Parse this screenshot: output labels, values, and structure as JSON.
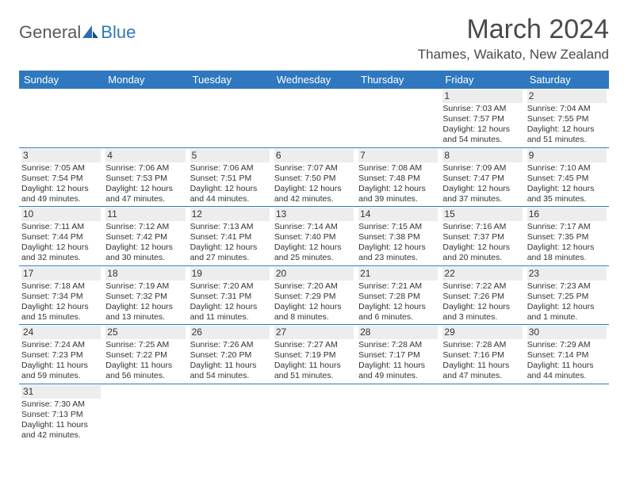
{
  "logo": {
    "word1": "General",
    "word2": "Blue"
  },
  "title": "March 2024",
  "location": "Thames, Waikato, New Zealand",
  "header_bg": "#2f78bf",
  "daynum_bg": "#ededed",
  "weekdays": [
    "Sunday",
    "Monday",
    "Tuesday",
    "Wednesday",
    "Thursday",
    "Friday",
    "Saturday"
  ],
  "weeks": [
    [
      null,
      null,
      null,
      null,
      null,
      {
        "n": "1",
        "sr": "Sunrise: 7:03 AM",
        "ss": "Sunset: 7:57 PM",
        "d1": "Daylight: 12 hours",
        "d2": "and 54 minutes."
      },
      {
        "n": "2",
        "sr": "Sunrise: 7:04 AM",
        "ss": "Sunset: 7:55 PM",
        "d1": "Daylight: 12 hours",
        "d2": "and 51 minutes."
      }
    ],
    [
      {
        "n": "3",
        "sr": "Sunrise: 7:05 AM",
        "ss": "Sunset: 7:54 PM",
        "d1": "Daylight: 12 hours",
        "d2": "and 49 minutes."
      },
      {
        "n": "4",
        "sr": "Sunrise: 7:06 AM",
        "ss": "Sunset: 7:53 PM",
        "d1": "Daylight: 12 hours",
        "d2": "and 47 minutes."
      },
      {
        "n": "5",
        "sr": "Sunrise: 7:06 AM",
        "ss": "Sunset: 7:51 PM",
        "d1": "Daylight: 12 hours",
        "d2": "and 44 minutes."
      },
      {
        "n": "6",
        "sr": "Sunrise: 7:07 AM",
        "ss": "Sunset: 7:50 PM",
        "d1": "Daylight: 12 hours",
        "d2": "and 42 minutes."
      },
      {
        "n": "7",
        "sr": "Sunrise: 7:08 AM",
        "ss": "Sunset: 7:48 PM",
        "d1": "Daylight: 12 hours",
        "d2": "and 39 minutes."
      },
      {
        "n": "8",
        "sr": "Sunrise: 7:09 AM",
        "ss": "Sunset: 7:47 PM",
        "d1": "Daylight: 12 hours",
        "d2": "and 37 minutes."
      },
      {
        "n": "9",
        "sr": "Sunrise: 7:10 AM",
        "ss": "Sunset: 7:45 PM",
        "d1": "Daylight: 12 hours",
        "d2": "and 35 minutes."
      }
    ],
    [
      {
        "n": "10",
        "sr": "Sunrise: 7:11 AM",
        "ss": "Sunset: 7:44 PM",
        "d1": "Daylight: 12 hours",
        "d2": "and 32 minutes."
      },
      {
        "n": "11",
        "sr": "Sunrise: 7:12 AM",
        "ss": "Sunset: 7:42 PM",
        "d1": "Daylight: 12 hours",
        "d2": "and 30 minutes."
      },
      {
        "n": "12",
        "sr": "Sunrise: 7:13 AM",
        "ss": "Sunset: 7:41 PM",
        "d1": "Daylight: 12 hours",
        "d2": "and 27 minutes."
      },
      {
        "n": "13",
        "sr": "Sunrise: 7:14 AM",
        "ss": "Sunset: 7:40 PM",
        "d1": "Daylight: 12 hours",
        "d2": "and 25 minutes."
      },
      {
        "n": "14",
        "sr": "Sunrise: 7:15 AM",
        "ss": "Sunset: 7:38 PM",
        "d1": "Daylight: 12 hours",
        "d2": "and 23 minutes."
      },
      {
        "n": "15",
        "sr": "Sunrise: 7:16 AM",
        "ss": "Sunset: 7:37 PM",
        "d1": "Daylight: 12 hours",
        "d2": "and 20 minutes."
      },
      {
        "n": "16",
        "sr": "Sunrise: 7:17 AM",
        "ss": "Sunset: 7:35 PM",
        "d1": "Daylight: 12 hours",
        "d2": "and 18 minutes."
      }
    ],
    [
      {
        "n": "17",
        "sr": "Sunrise: 7:18 AM",
        "ss": "Sunset: 7:34 PM",
        "d1": "Daylight: 12 hours",
        "d2": "and 15 minutes."
      },
      {
        "n": "18",
        "sr": "Sunrise: 7:19 AM",
        "ss": "Sunset: 7:32 PM",
        "d1": "Daylight: 12 hours",
        "d2": "and 13 minutes."
      },
      {
        "n": "19",
        "sr": "Sunrise: 7:20 AM",
        "ss": "Sunset: 7:31 PM",
        "d1": "Daylight: 12 hours",
        "d2": "and 11 minutes."
      },
      {
        "n": "20",
        "sr": "Sunrise: 7:20 AM",
        "ss": "Sunset: 7:29 PM",
        "d1": "Daylight: 12 hours",
        "d2": "and 8 minutes."
      },
      {
        "n": "21",
        "sr": "Sunrise: 7:21 AM",
        "ss": "Sunset: 7:28 PM",
        "d1": "Daylight: 12 hours",
        "d2": "and 6 minutes."
      },
      {
        "n": "22",
        "sr": "Sunrise: 7:22 AM",
        "ss": "Sunset: 7:26 PM",
        "d1": "Daylight: 12 hours",
        "d2": "and 3 minutes."
      },
      {
        "n": "23",
        "sr": "Sunrise: 7:23 AM",
        "ss": "Sunset: 7:25 PM",
        "d1": "Daylight: 12 hours",
        "d2": "and 1 minute."
      }
    ],
    [
      {
        "n": "24",
        "sr": "Sunrise: 7:24 AM",
        "ss": "Sunset: 7:23 PM",
        "d1": "Daylight: 11 hours",
        "d2": "and 59 minutes."
      },
      {
        "n": "25",
        "sr": "Sunrise: 7:25 AM",
        "ss": "Sunset: 7:22 PM",
        "d1": "Daylight: 11 hours",
        "d2": "and 56 minutes."
      },
      {
        "n": "26",
        "sr": "Sunrise: 7:26 AM",
        "ss": "Sunset: 7:20 PM",
        "d1": "Daylight: 11 hours",
        "d2": "and 54 minutes."
      },
      {
        "n": "27",
        "sr": "Sunrise: 7:27 AM",
        "ss": "Sunset: 7:19 PM",
        "d1": "Daylight: 11 hours",
        "d2": "and 51 minutes."
      },
      {
        "n": "28",
        "sr": "Sunrise: 7:28 AM",
        "ss": "Sunset: 7:17 PM",
        "d1": "Daylight: 11 hours",
        "d2": "and 49 minutes."
      },
      {
        "n": "29",
        "sr": "Sunrise: 7:28 AM",
        "ss": "Sunset: 7:16 PM",
        "d1": "Daylight: 11 hours",
        "d2": "and 47 minutes."
      },
      {
        "n": "30",
        "sr": "Sunrise: 7:29 AM",
        "ss": "Sunset: 7:14 PM",
        "d1": "Daylight: 11 hours",
        "d2": "and 44 minutes."
      }
    ],
    [
      {
        "n": "31",
        "sr": "Sunrise: 7:30 AM",
        "ss": "Sunset: 7:13 PM",
        "d1": "Daylight: 11 hours",
        "d2": "and 42 minutes."
      },
      null,
      null,
      null,
      null,
      null,
      null
    ]
  ]
}
